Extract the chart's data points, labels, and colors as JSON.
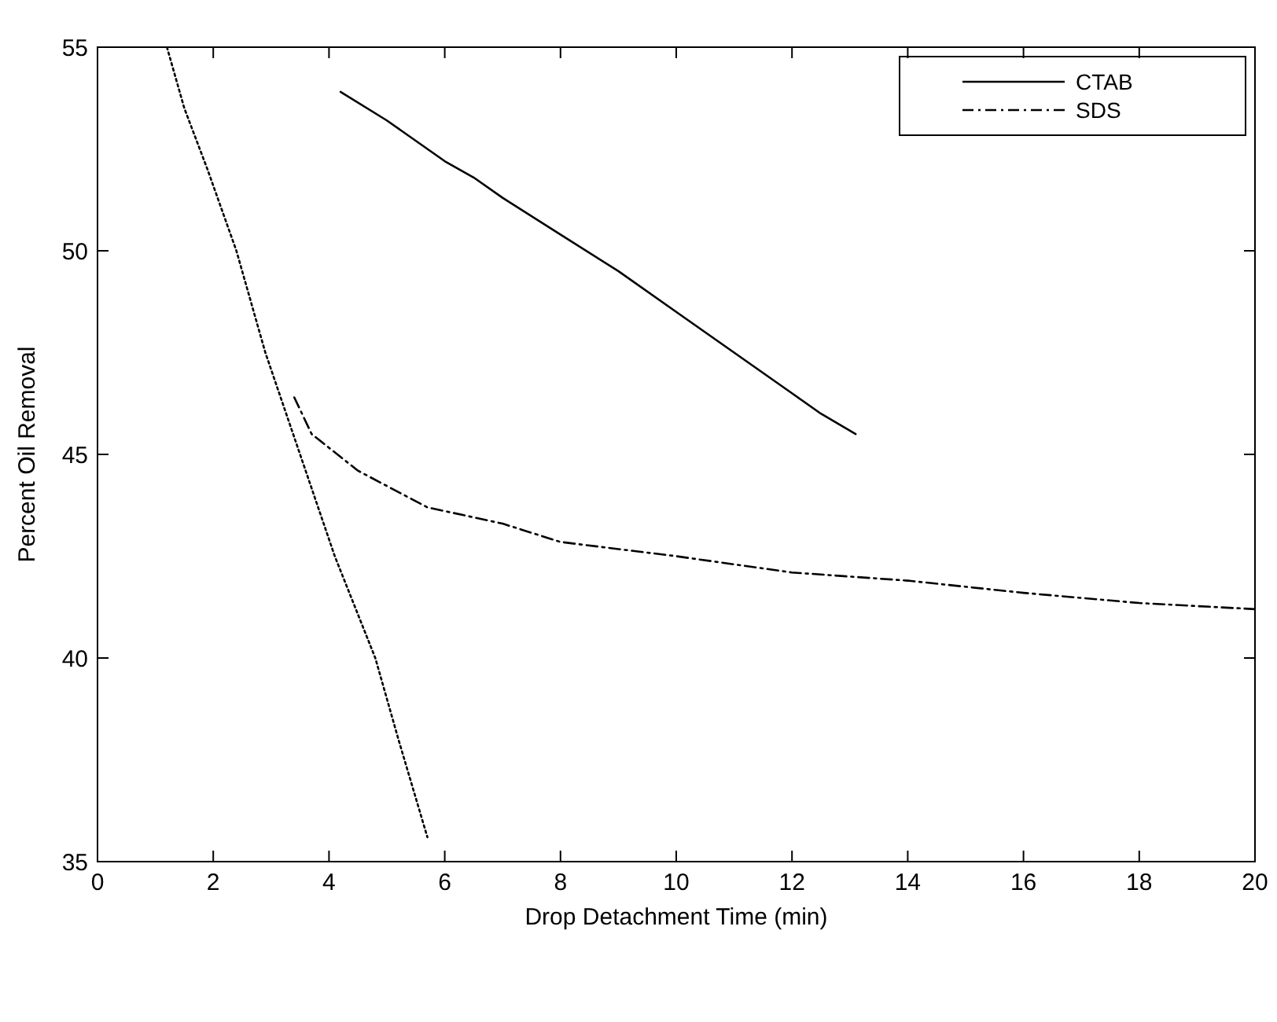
{
  "chart_data": {
    "type": "line",
    "xlabel": "Drop Detachment Time (min)",
    "ylabel": "Percent Oil Removal",
    "xlim": [
      0,
      20
    ],
    "xticks": [
      0,
      2,
      4,
      6,
      8,
      10,
      12,
      14,
      16,
      18,
      20
    ],
    "ylim": [
      35,
      55
    ],
    "yticks": [
      35,
      40,
      45,
      50,
      55
    ],
    "grid": false,
    "legend": "top right",
    "series": [
      {
        "color": "#000000",
        "line_style": "dotted",
        "x": [
          1.2,
          1.5,
          1.9,
          2.4,
          2.9,
          3.5,
          4.1,
          4.8,
          5.2,
          5.7
        ],
        "values": [
          55,
          53.5,
          52,
          50,
          47.5,
          45,
          42.5,
          40,
          38,
          35.6
        ]
      },
      {
        "name": "CTAB",
        "color": "#000000",
        "line_style": "solid",
        "x": [
          4.2,
          5,
          6,
          6.5,
          7,
          8,
          9,
          10,
          11,
          12,
          12.5,
          13.1
        ],
        "values": [
          53.9,
          53.2,
          52.2,
          51.8,
          51.3,
          50.4,
          49.5,
          48.5,
          47.5,
          46.5,
          46,
          45.5
        ]
      },
      {
        "name": "SDS",
        "color": "#000000",
        "line_style": "dashdot",
        "x": [
          3.4,
          3.7,
          4.5,
          5.7,
          7,
          8,
          10,
          12,
          14,
          16,
          18,
          20
        ],
        "values": [
          46.4,
          45.5,
          44.6,
          43.7,
          43.3,
          42.85,
          42.5,
          42.1,
          41.9,
          41.6,
          41.35,
          41.2
        ]
      }
    ]
  }
}
